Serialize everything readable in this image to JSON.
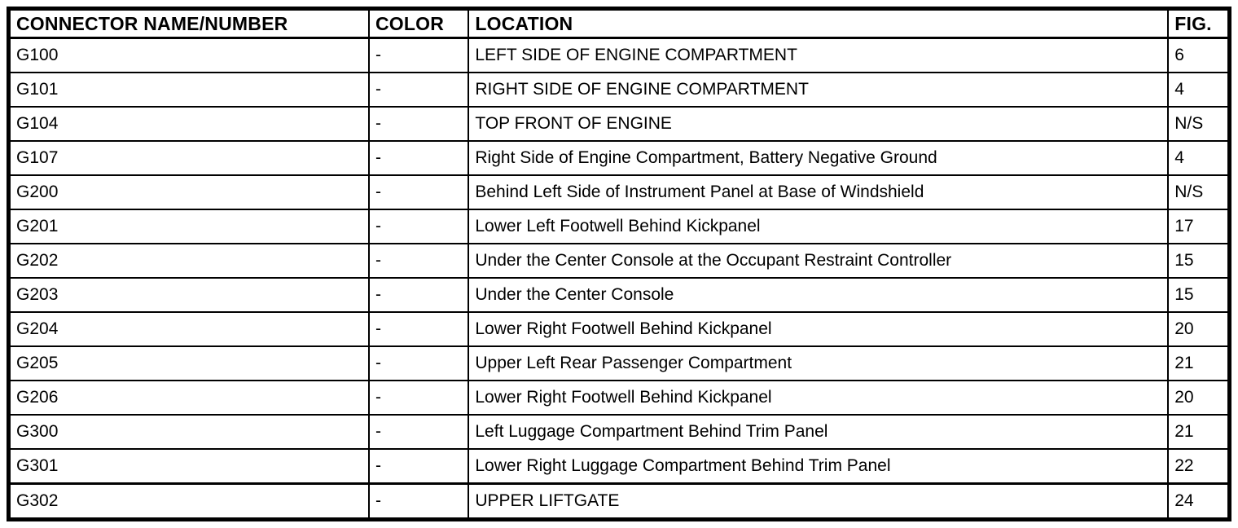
{
  "table": {
    "columns": [
      {
        "key": "name",
        "label": "CONNECTOR NAME/NUMBER"
      },
      {
        "key": "color",
        "label": "COLOR"
      },
      {
        "key": "location",
        "label": "LOCATION"
      },
      {
        "key": "fig",
        "label": "FIG."
      }
    ],
    "rows": [
      {
        "name": "G100",
        "color": "-",
        "location": "LEFT SIDE OF ENGINE COMPARTMENT",
        "fig": "6"
      },
      {
        "name": "G101",
        "color": "-",
        "location": "RIGHT SIDE OF ENGINE COMPARTMENT",
        "fig": "4"
      },
      {
        "name": "G104",
        "color": "-",
        "location": "TOP FRONT OF ENGINE",
        "fig": "N/S"
      },
      {
        "name": "G107",
        "color": "-",
        "location": "Right Side of Engine Compartment, Battery Negative Ground",
        "fig": "4"
      },
      {
        "name": "G200",
        "color": "-",
        "location": "Behind Left Side of Instrument Panel at Base of Windshield",
        "fig": "N/S"
      },
      {
        "name": "G201",
        "color": "-",
        "location": "Lower Left Footwell Behind Kickpanel",
        "fig": "17"
      },
      {
        "name": "G202",
        "color": "-",
        "location": "Under the Center Console at the Occupant Restraint Controller",
        "fig": "15"
      },
      {
        "name": "G203",
        "color": "-",
        "location": "Under the Center Console",
        "fig": "15"
      },
      {
        "name": "G204",
        "color": "-",
        "location": "Lower Right Footwell Behind Kickpanel",
        "fig": "20"
      },
      {
        "name": "G205",
        "color": "-",
        "location": "Upper Left Rear Passenger Compartment",
        "fig": "21"
      },
      {
        "name": "G206",
        "color": "-",
        "location": "Lower Right Footwell Behind Kickpanel",
        "fig": "20"
      },
      {
        "name": "G300",
        "color": "-",
        "location": "Left Luggage Compartment Behind Trim Panel",
        "fig": "21"
      },
      {
        "name": "G301",
        "color": "-",
        "location": "Lower Right Luggage Compartment Behind Trim Panel",
        "fig": "22"
      },
      {
        "name": "G302",
        "color": "-",
        "location": "UPPER LIFTGATE",
        "fig": "24"
      }
    ]
  },
  "colors": {
    "border": "#000000",
    "background": "#ffffff",
    "text": "#000000"
  }
}
